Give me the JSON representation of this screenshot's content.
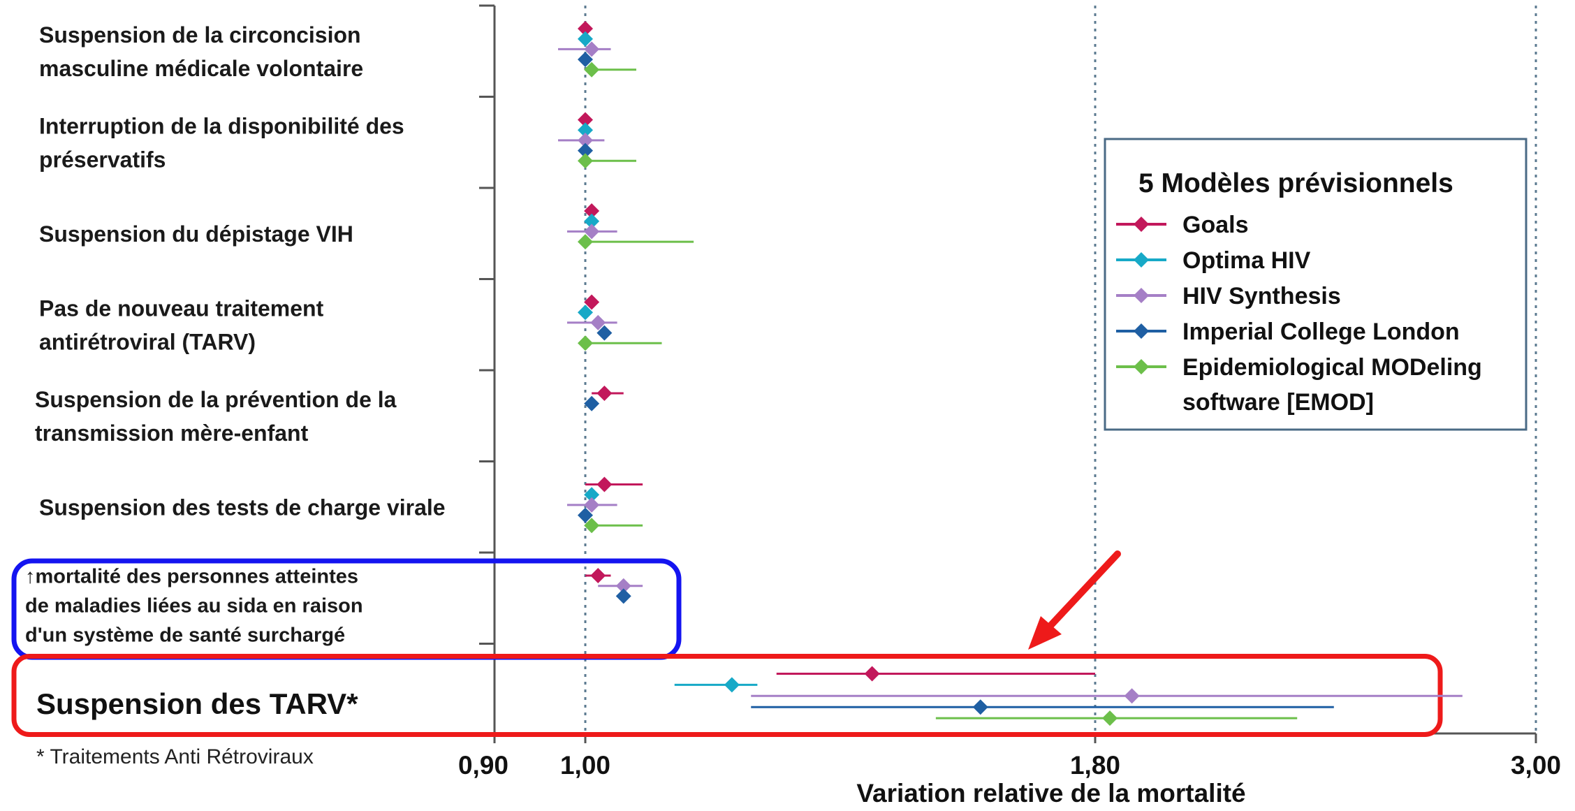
{
  "chart_data": {
    "type": "scatter",
    "subtype": "forest-plot",
    "xlabel": "Variation relative de la mortalité",
    "x_ticks": [
      "0,90",
      "1,00",
      "1,80",
      "3,00"
    ],
    "reference_lines": [
      "1,00",
      "1,80",
      "3,00"
    ],
    "legend_title": "5 Modèles prévisionnels",
    "legend_position": "right",
    "series": [
      {
        "key": "goals",
        "name": "Goals",
        "color": "#c2185b"
      },
      {
        "key": "optima",
        "name": "Optima HIV",
        "color": "#17a9c7"
      },
      {
        "key": "synthesis",
        "name": "HIV Synthesis",
        "color": "#a57fc6"
      },
      {
        "key": "icl",
        "name": "Imperial College London",
        "color": "#1f5fa3"
      },
      {
        "key": "emod",
        "name": "Epidemiological MODeling software [EMOD]",
        "name_lines": [
          "Epidemiological MODeling",
          "software [EMOD]"
        ],
        "color": "#6cbf4a"
      }
    ],
    "categories": [
      {
        "label_lines": [
          "Suspension de la circoncision",
          "masculine médicale volontaire"
        ],
        "points": [
          {
            "series": "goals",
            "est": 1.0,
            "lo": 1.0,
            "hi": 1.0
          },
          {
            "series": "optima",
            "est": 1.0,
            "lo": 1.0,
            "hi": 1.0
          },
          {
            "series": "synthesis",
            "est": 1.01,
            "lo": 0.97,
            "hi": 1.04
          },
          {
            "series": "icl",
            "est": 1.0,
            "lo": 1.0,
            "hi": 1.0
          },
          {
            "series": "emod",
            "est": 1.01,
            "lo": 1.0,
            "hi": 1.08
          }
        ]
      },
      {
        "label_lines": [
          "Interruption de la disponibilité des",
          "préservatifs"
        ],
        "points": [
          {
            "series": "goals",
            "est": 1.0,
            "lo": 1.0,
            "hi": 1.0
          },
          {
            "series": "optima",
            "est": 1.0,
            "lo": 1.0,
            "hi": 1.0
          },
          {
            "series": "synthesis",
            "est": 1.0,
            "lo": 0.97,
            "hi": 1.03
          },
          {
            "series": "icl",
            "est": 1.0,
            "lo": 1.0,
            "hi": 1.0
          },
          {
            "series": "emod",
            "est": 1.0,
            "lo": 1.0,
            "hi": 1.08
          }
        ]
      },
      {
        "label_lines": [
          "Suspension du dépistage VIH"
        ],
        "points": [
          {
            "series": "goals",
            "est": 1.01,
            "lo": 1.01,
            "hi": 1.01
          },
          {
            "series": "optima",
            "est": 1.01,
            "lo": 1.01,
            "hi": 1.01
          },
          {
            "series": "synthesis",
            "est": 1.01,
            "lo": 0.98,
            "hi": 1.05
          },
          {
            "series": "emod",
            "est": 1.0,
            "lo": 1.0,
            "hi": 1.17
          }
        ]
      },
      {
        "label_lines": [
          "Pas de nouveau traitement",
          "antirétroviral (TARV)"
        ],
        "points": [
          {
            "series": "goals",
            "est": 1.01,
            "lo": 1.01,
            "hi": 1.01
          },
          {
            "series": "optima",
            "est": 1.0,
            "lo": 1.0,
            "hi": 1.0
          },
          {
            "series": "synthesis",
            "est": 1.02,
            "lo": 0.98,
            "hi": 1.05
          },
          {
            "series": "icl",
            "est": 1.03,
            "lo": 1.03,
            "hi": 1.03
          },
          {
            "series": "emod",
            "est": 1.0,
            "lo": 1.0,
            "hi": 1.12
          }
        ]
      },
      {
        "label_lines": [
          "Suspension de la prévention de la",
          "transmission mère-enfant"
        ],
        "points": [
          {
            "series": "goals",
            "est": 1.03,
            "lo": 1.01,
            "hi": 1.06
          },
          {
            "series": "icl",
            "est": 1.01,
            "lo": 1.01,
            "hi": 1.01
          }
        ]
      },
      {
        "label_lines": [
          "Suspension des tests de charge virale"
        ],
        "points": [
          {
            "series": "goals",
            "est": 1.03,
            "lo": 1.0,
            "hi": 1.09
          },
          {
            "series": "optima",
            "est": 1.01,
            "lo": 1.01,
            "hi": 1.01
          },
          {
            "series": "synthesis",
            "est": 1.01,
            "lo": 0.98,
            "hi": 1.05
          },
          {
            "series": "icl",
            "est": 1.0,
            "lo": 1.0,
            "hi": 1.0
          },
          {
            "series": "emod",
            "est": 1.01,
            "lo": 1.0,
            "hi": 1.09
          }
        ]
      },
      {
        "label_lines": [
          "↑mortalité des personnes atteintes",
          "de maladies liées au sida en raison",
          "d'un système de santé surchargé"
        ],
        "highlight": "blue",
        "points": [
          {
            "series": "goals",
            "est": 1.02,
            "lo": 1.0,
            "hi": 1.04
          },
          {
            "series": "synthesis",
            "est": 1.06,
            "lo": 1.02,
            "hi": 1.09
          },
          {
            "series": "icl",
            "est": 1.06,
            "lo": 1.06,
            "hi": 1.06
          }
        ]
      },
      {
        "label_lines": [
          "Suspension des TARV*"
        ],
        "highlight": "red",
        "points": [
          {
            "series": "goals",
            "est": 1.45,
            "lo": 1.3,
            "hi": 1.8
          },
          {
            "series": "optima",
            "est": 1.23,
            "lo": 1.14,
            "hi": 1.27
          },
          {
            "series": "synthesis",
            "est": 1.9,
            "lo": 1.26,
            "hi": 2.8
          },
          {
            "series": "icl",
            "est": 1.62,
            "lo": 1.26,
            "hi": 2.45
          },
          {
            "series": "emod",
            "est": 1.84,
            "lo": 1.55,
            "hi": 2.35
          }
        ]
      }
    ]
  },
  "footnote": "* Traitements Anti Rétroviraux"
}
